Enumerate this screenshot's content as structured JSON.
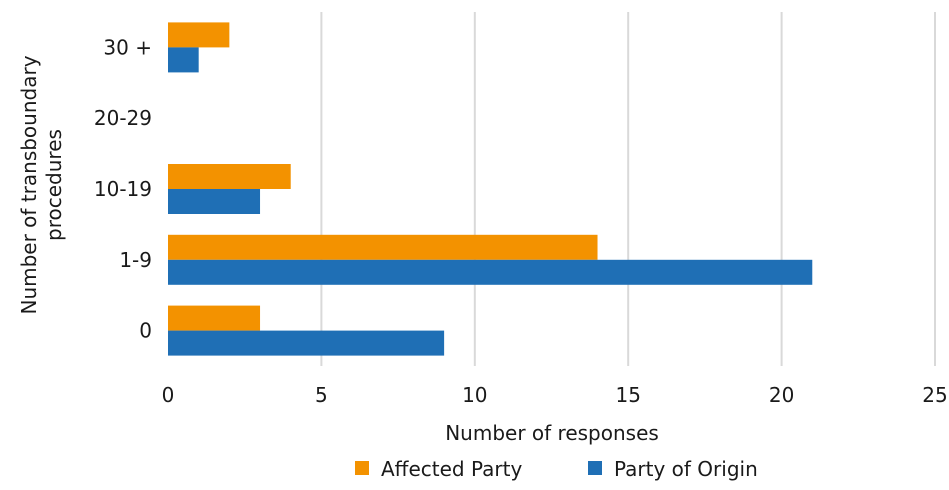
{
  "chart_data": {
    "type": "bar",
    "orientation": "horizontal",
    "categories": [
      "30 +",
      "20-29",
      "10-19",
      "1-9",
      "0"
    ],
    "series": [
      {
        "name": "Affected Party",
        "color": "#f39200",
        "values": [
          2,
          0,
          4,
          14,
          3
        ]
      },
      {
        "name": "Party of Origin",
        "color": "#1f6fb5",
        "values": [
          1,
          0,
          3,
          21,
          9
        ]
      }
    ],
    "xlabel": "Number of responses",
    "ylabel": "Number of transboundary procedures",
    "ylabel_lines": [
      "Number of transboundary",
      "procedures"
    ],
    "xlim": [
      0,
      25
    ],
    "xticks": [
      "0",
      "5",
      "10",
      "15",
      "20",
      "25"
    ],
    "grid": "vertical",
    "gridline_color": "#d9d9d9",
    "legend_position": "bottom"
  }
}
